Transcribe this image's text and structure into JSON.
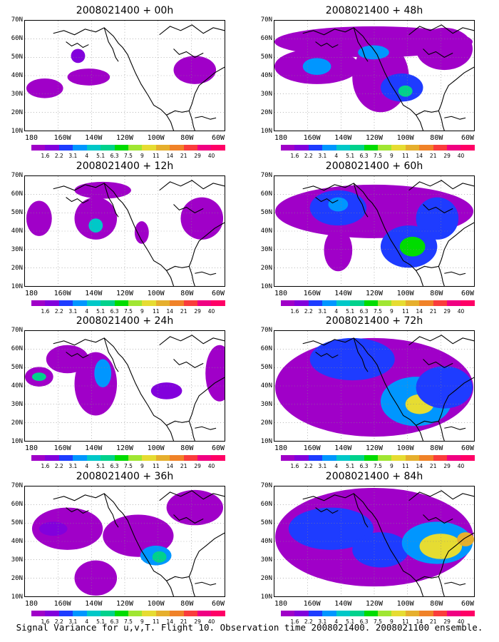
{
  "caption": "Signal Variance for u,v,T. Flight 10. Observation time 2008021400. 2008021100 ensemble.",
  "latitude_labels": [
    "70N",
    "60N",
    "50N",
    "40N",
    "30N",
    "20N",
    "10N"
  ],
  "longitude_labels": [
    "180",
    "160W",
    "140W",
    "120W",
    "100W",
    "80W",
    "60W"
  ],
  "colorbar": {
    "labels": [
      "1.6",
      "2.2",
      "3.1",
      "4",
      "5.1",
      "6.3",
      "7.5",
      "9",
      "11",
      "14",
      "21",
      "29",
      "40"
    ],
    "colors": [
      "#a000c8",
      "#8200dc",
      "#1e3cff",
      "#0096ff",
      "#00c8c8",
      "#00d28c",
      "#00dc00",
      "#a0e632",
      "#e6dc32",
      "#e6af2d",
      "#f08228",
      "#fa3c3c",
      "#f00082"
    ]
  },
  "panels": [
    {
      "id": "00h",
      "title": "2008021400 + 00h"
    },
    {
      "id": "48h",
      "title": "2008021400 + 48h"
    },
    {
      "id": "12h",
      "title": "2008021400 + 12h"
    },
    {
      "id": "60h",
      "title": "2008021400 + 60h"
    },
    {
      "id": "24h",
      "title": "2008021400 + 24h"
    },
    {
      "id": "72h",
      "title": "2008021400 + 72h"
    },
    {
      "id": "36h",
      "title": "2008021400 + 36h"
    },
    {
      "id": "84h",
      "title": "2008021400 + 84h"
    }
  ]
}
